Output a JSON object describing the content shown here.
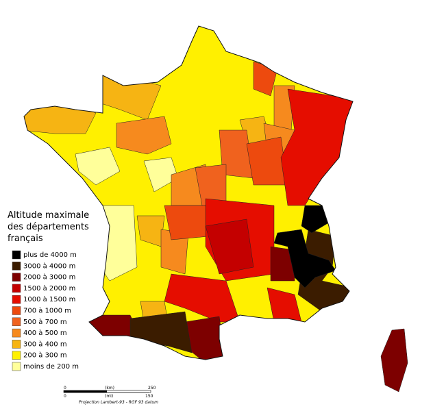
{
  "legend": {
    "title_lines": [
      "Altitude maximale",
      "des départements",
      "français"
    ],
    "items": [
      {
        "label": "plus de 4000 m",
        "color": "#000000"
      },
      {
        "label": "3000 à 4000 m",
        "color": "#3b1c00"
      },
      {
        "label": "2000 à 3000 m",
        "color": "#7d0000"
      },
      {
        "label": "1500 à 2000 m",
        "color": "#c40000"
      },
      {
        "label": "1000 à 1500 m",
        "color": "#e50d00"
      },
      {
        "label": "700 à 1000 m",
        "color": "#ed4a0e"
      },
      {
        "label": "500 à 700 m",
        "color": "#f0621e"
      },
      {
        "label": "400 à 500 m",
        "color": "#f68a1e"
      },
      {
        "label": "300 à 400 m",
        "color": "#f6b413"
      },
      {
        "label": "200 à 300 m",
        "color": "#fff000"
      },
      {
        "label": "moins de 200 m",
        "color": "#ffff9a"
      }
    ]
  },
  "scale": {
    "km_start": "0",
    "km_unit": "(km)",
    "km_end": "250",
    "mi_start": "0",
    "mi_unit": "(mi)",
    "mi_end": "150",
    "projection": "Projection Lambert-93 - RGF 93 datum"
  }
}
